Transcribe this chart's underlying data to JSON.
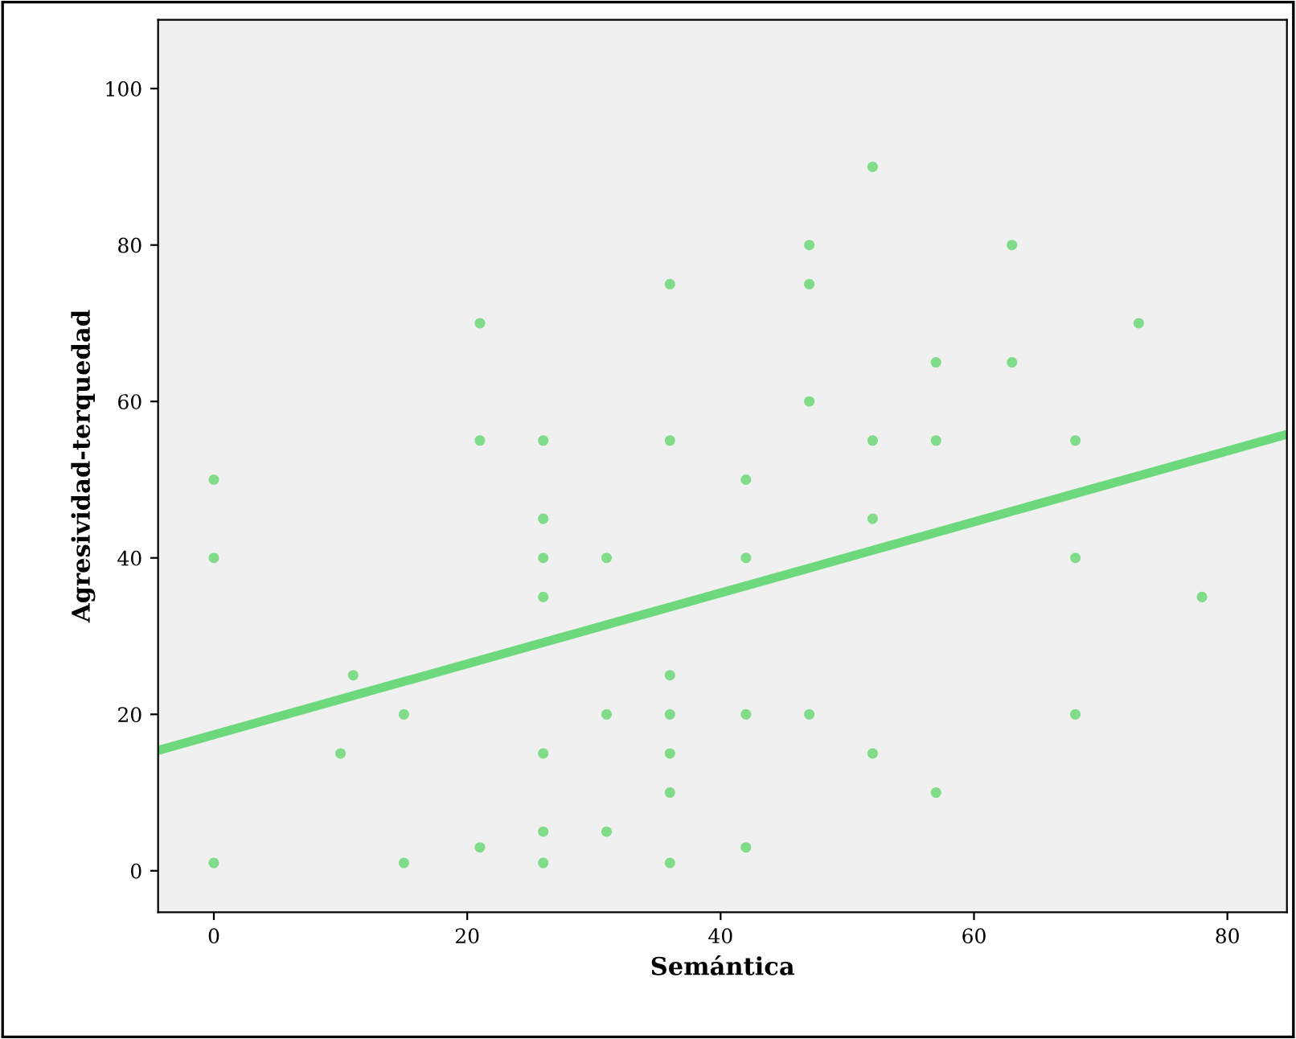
{
  "chart_data": {
    "type": "scatter",
    "xlabel": "Semántica",
    "ylabel": "Agresividad-terquedad",
    "xlim": [
      -4.4,
      84.7
    ],
    "ylim": [
      -5.3,
      108.8
    ],
    "xticks": [
      0,
      20,
      40,
      60,
      80
    ],
    "yticks": [
      0,
      20,
      40,
      60,
      80,
      100
    ],
    "grid": false,
    "series": [
      {
        "marker": "circle",
        "color": "#80dc88",
        "x": [
          0,
          0,
          0,
          10,
          11,
          15,
          15,
          21,
          21,
          21,
          26,
          26,
          26,
          26,
          26,
          26,
          26,
          31,
          31,
          31,
          36,
          36,
          36,
          36,
          36,
          36,
          36,
          42,
          42,
          42,
          42,
          47,
          47,
          47,
          47,
          52,
          52,
          52,
          52,
          57,
          57,
          57,
          63,
          63,
          68,
          68,
          68,
          73,
          78
        ],
        "values": [
          50,
          40,
          1,
          15,
          25,
          20,
          1,
          70,
          55,
          3,
          55,
          45,
          40,
          35,
          15,
          5,
          1,
          40,
          20,
          5,
          75,
          55,
          25,
          20,
          15,
          10,
          1,
          50,
          40,
          20,
          3,
          80,
          75,
          60,
          20,
          90,
          55,
          45,
          15,
          65,
          55,
          10,
          80,
          65,
          55,
          40,
          20,
          70,
          35
        ]
      },
      {
        "type": "line",
        "marker": "none",
        "color": "#6dd97c",
        "x": [
          -4.4,
          84.7
        ],
        "values": [
          15.4,
          55.8
        ]
      }
    ]
  }
}
